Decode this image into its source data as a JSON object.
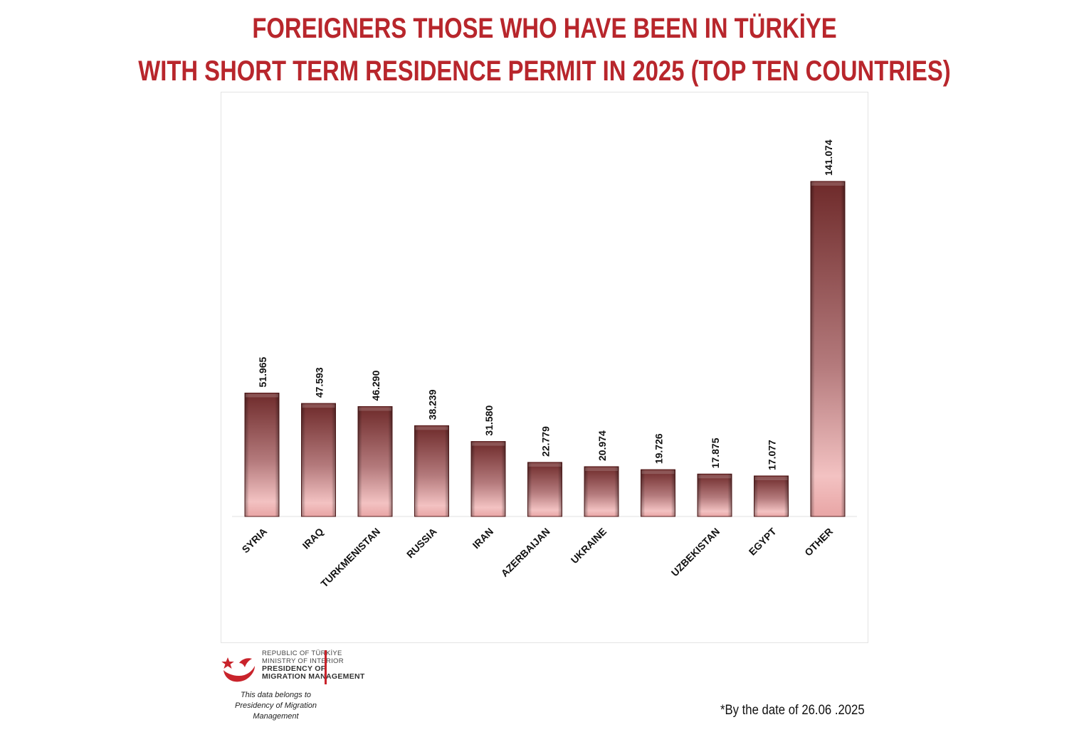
{
  "title_line1": "FOREIGNERS THOSE WHO HAVE BEEN IN TÜRKİYE",
  "title_line2": "WITH SHORT TERM RESIDENCE PERMIT IN 2025 (TOP TEN COUNTRIES)",
  "colors": {
    "title": "#b8262c",
    "bar_top": "#6e2a2a",
    "bar_bottom": "#f1b9b9",
    "logo_red": "#c9232b"
  },
  "chart_data": {
    "type": "bar",
    "categories": [
      "SYRIA",
      "IRAQ",
      "TURKMENISTAN",
      "RUSSIA",
      "IRAN",
      "AZERBAIJAN",
      "UKRAINE",
      "",
      "UZBEKISTAN",
      "EGYPT",
      "OTHER"
    ],
    "values": [
      51965,
      47593,
      46290,
      38239,
      31580,
      22779,
      20974,
      19726,
      17875,
      17077,
      141074
    ],
    "data_labels": [
      "51.965",
      "47.593",
      "46.290",
      "38.239",
      "31.580",
      "22.779",
      "20.974",
      "19.726",
      "17.875",
      "17.077",
      "141.074"
    ],
    "ylim": [
      0,
      160000
    ],
    "grid": false,
    "legend": "none"
  },
  "logo": {
    "line1": "REPUBLIC OF TÜRKİYE",
    "line2": "MINISTRY OF INTERIOR",
    "line3": "PRESIDENCY OF",
    "line4": "MIGRATION MANAGEMENT"
  },
  "credit_line1": "This data belongs to",
  "credit_line2": "Presidency of Migration Management",
  "date_note": "*By the date of  26.06 .2025"
}
